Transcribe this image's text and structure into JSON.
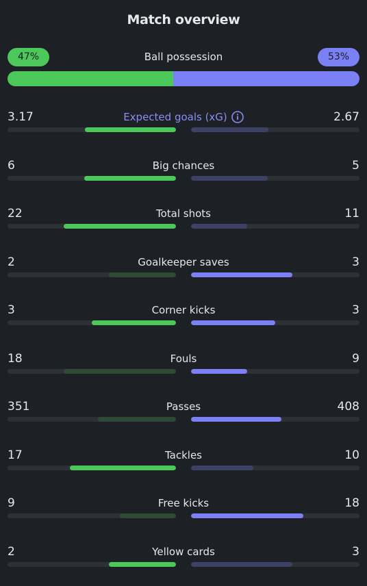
{
  "title": "Match overview",
  "possession": {
    "label": "Ball possession",
    "home": "47%",
    "away": "53%",
    "home_fraction": 0.47,
    "colors": {
      "home": "#4cc75a",
      "away": "#7b80f4"
    }
  },
  "stats": [
    {
      "label": "Expected goals (xG)",
      "home": "3.17",
      "away": "2.67",
      "home_fraction": 0.54,
      "away_fraction": 0.46,
      "accent": true,
      "info_icon": "info-icon",
      "home_lead": true,
      "away_lead": false
    },
    {
      "label": "Big chances",
      "home": "6",
      "away": "5",
      "home_fraction": 0.545,
      "away_fraction": 0.455,
      "home_lead": true,
      "away_lead": false
    },
    {
      "label": "Total shots",
      "home": "22",
      "away": "11",
      "home_fraction": 0.667,
      "away_fraction": 0.333,
      "home_lead": true,
      "away_lead": false
    },
    {
      "label": "Goalkeeper saves",
      "home": "2",
      "away": "3",
      "home_fraction": 0.4,
      "away_fraction": 0.6,
      "home_lead": false,
      "away_lead": true
    },
    {
      "label": "Corner kicks",
      "home": "3",
      "away": "3",
      "home_fraction": 0.5,
      "away_fraction": 0.5,
      "home_lead": true,
      "away_lead": true
    },
    {
      "label": "Fouls",
      "home": "18",
      "away": "9",
      "home_fraction": 0.667,
      "away_fraction": 0.333,
      "home_lead": false,
      "away_lead": true
    },
    {
      "label": "Passes",
      "home": "351",
      "away": "408",
      "home_fraction": 0.462,
      "away_fraction": 0.538,
      "home_lead": false,
      "away_lead": true
    },
    {
      "label": "Tackles",
      "home": "17",
      "away": "10",
      "home_fraction": 0.63,
      "away_fraction": 0.37,
      "home_lead": true,
      "away_lead": false
    },
    {
      "label": "Free kicks",
      "home": "9",
      "away": "18",
      "home_fraction": 0.333,
      "away_fraction": 0.667,
      "home_lead": false,
      "away_lead": true
    },
    {
      "label": "Yellow cards",
      "home": "2",
      "away": "3",
      "home_fraction": 0.4,
      "away_fraction": 0.6,
      "home_lead": true,
      "away_lead": false
    }
  ]
}
